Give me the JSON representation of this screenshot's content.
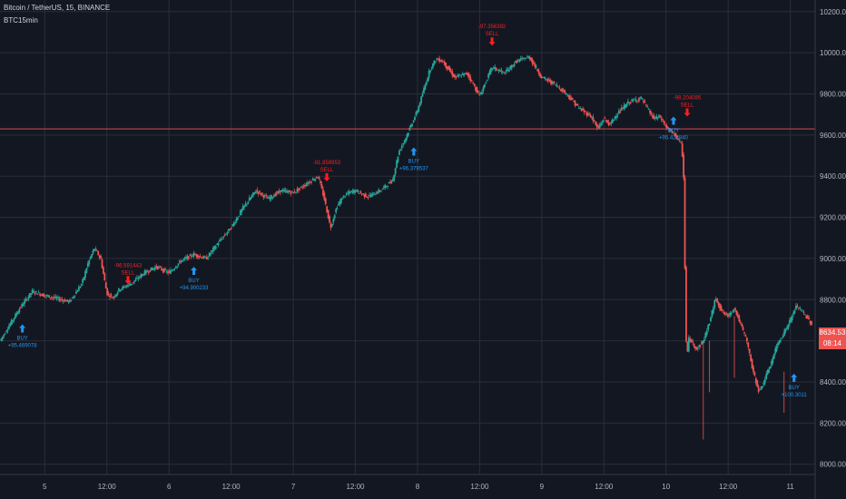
{
  "header": {
    "symbol_title": "Bitcoin / TetherUS, 15, BINANCE",
    "study_label": "BTC15min"
  },
  "colors": {
    "background": "#131722",
    "grid": "#2a2e39",
    "up": "#26a69a",
    "down": "#ef5350",
    "buy": "#2196f3",
    "sell": "#ff1e1e",
    "axis_text": "#b2b5be",
    "last_price_line": "#ef5350"
  },
  "last_price": {
    "value": "8634.53",
    "countdown": "08:14"
  },
  "chart_data": {
    "type": "candlestick",
    "title": "Bitcoin / TetherUS, 15, BINANCE",
    "study": "BTC15min",
    "ylim": [
      7950,
      10230
    ],
    "y_ticks": [
      "8000.00",
      "8200.00",
      "8400.00",
      "8600.00",
      "8800.00",
      "9000.00",
      "9200.00",
      "9400.00",
      "9600.00",
      "9800.00",
      "10000.00",
      "10200.00"
    ],
    "y_tick_values": [
      8000,
      8200,
      8400,
      8600,
      8800,
      9000,
      9200,
      9400,
      9600,
      9800,
      10000,
      10200
    ],
    "x_ticks": [
      "5",
      "12:00",
      "6",
      "12:00",
      "7",
      "12:00",
      "8",
      "12:00",
      "9",
      "12:00",
      "10",
      "12:00",
      "11"
    ],
    "x_tick_days": [
      5.0,
      5.5,
      6.0,
      6.5,
      7.0,
      7.5,
      8.0,
      8.5,
      9.0,
      9.5,
      10.0,
      10.5,
      11.0
    ],
    "xlim": [
      4.64,
      11.2
    ],
    "grid": true,
    "price_line": 9630,
    "path_days": [
      4.64,
      4.7,
      4.8,
      4.9,
      5.0,
      5.2,
      5.3,
      5.35,
      5.4,
      5.45,
      5.5,
      5.55,
      5.6,
      5.7,
      5.8,
      5.9,
      6.0,
      6.1,
      6.2,
      6.3,
      6.4,
      6.5,
      6.6,
      6.7,
      6.8,
      6.9,
      7.0,
      7.1,
      7.2,
      7.25,
      7.3,
      7.35,
      7.4,
      7.45,
      7.5,
      7.6,
      7.7,
      7.8,
      7.85,
      7.9,
      7.95,
      8.0,
      8.05,
      8.1,
      8.15,
      8.2,
      8.3,
      8.4,
      8.5,
      8.6,
      8.7,
      8.8,
      8.9,
      9.0,
      9.1,
      9.2,
      9.3,
      9.4,
      9.45,
      9.5,
      9.55,
      9.6,
      9.7,
      9.8,
      9.85,
      9.9,
      9.95,
      10.0,
      10.05,
      10.08,
      10.1,
      10.12,
      10.14,
      10.16,
      10.17,
      10.18,
      10.2,
      10.25,
      10.3,
      10.35,
      10.4,
      10.45,
      10.5,
      10.55,
      10.6,
      10.65,
      10.7,
      10.75,
      10.8,
      10.85,
      10.9,
      10.95,
      11.0,
      11.05,
      11.1,
      11.2
    ],
    "path_prices": [
      8600,
      8660,
      8760,
      8840,
      8820,
      8790,
      8880,
      8980,
      9050,
      9000,
      8830,
      8810,
      8850,
      8880,
      8930,
      8960,
      8930,
      8990,
      9020,
      9000,
      9080,
      9150,
      9250,
      9330,
      9290,
      9330,
      9320,
      9360,
      9400,
      9290,
      9150,
      9250,
      9300,
      9320,
      9330,
      9300,
      9330,
      9380,
      9520,
      9580,
      9650,
      9720,
      9820,
      9920,
      9970,
      9960,
      9880,
      9900,
      9790,
      9930,
      9900,
      9960,
      9980,
      9880,
      9850,
      9800,
      9730,
      9690,
      9630,
      9680,
      9650,
      9700,
      9760,
      9780,
      9730,
      9680,
      9690,
      9640,
      9610,
      9600,
      9570,
      9560,
      9460,
      8620,
      8520,
      8610,
      8600,
      8560,
      8600,
      8690,
      8810,
      8740,
      8720,
      8760,
      8680,
      8600,
      8450,
      8350,
      8420,
      8500,
      8590,
      8640,
      8700,
      8770,
      8740,
      8660
    ],
    "signals": [
      {
        "type": "BUY",
        "day": 4.82,
        "price": 8680,
        "value": "+95.469078"
      },
      {
        "type": "SELL",
        "day": 5.67,
        "price": 8875,
        "value": "-96.591443"
      },
      {
        "type": "BUY",
        "day": 6.2,
        "price": 8960,
        "value": "+94.900233"
      },
      {
        "type": "SELL",
        "day": 7.27,
        "price": 9375,
        "value": "-91.859953"
      },
      {
        "type": "BUY",
        "day": 7.97,
        "price": 9540,
        "value": "+96.379537"
      },
      {
        "type": "SELL",
        "day": 8.6,
        "price": 10035,
        "value": "-97.356392"
      },
      {
        "type": "BUY",
        "day": 10.06,
        "price": 9690,
        "value": "+95.423840"
      },
      {
        "type": "SELL",
        "day": 10.17,
        "price": 9690,
        "value": "-98.204085"
      },
      {
        "type": "BUY",
        "day": 11.03,
        "price": 8440,
        "value": "+100.3011"
      }
    ]
  }
}
